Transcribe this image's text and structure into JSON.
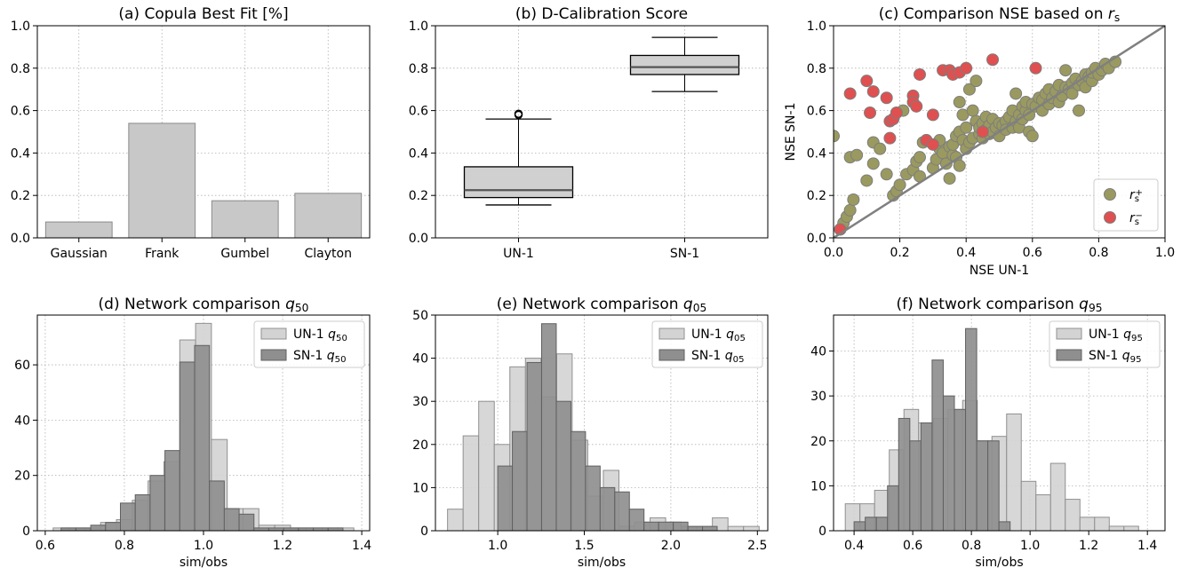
{
  "chart_data": [
    {
      "id": "a",
      "type": "bar",
      "title": "(a) Copula Best Fit [%]",
      "categories": [
        "Gaussian",
        "Frank",
        "Gumbel",
        "Clayton"
      ],
      "values": [
        0.075,
        0.54,
        0.175,
        0.21
      ],
      "ylim": [
        0,
        1.0
      ],
      "yticks": [
        "0.0",
        "0.2",
        "0.4",
        "0.6",
        "0.8",
        "1.0"
      ],
      "bar_color": "#c8c8c8",
      "grid": true
    },
    {
      "id": "b",
      "type": "box",
      "title": "(b) D-Calibration Score",
      "categories": [
        "UN-1",
        "SN-1"
      ],
      "boxes": [
        {
          "whislo": 0.155,
          "q1": 0.19,
          "median": 0.225,
          "q3": 0.335,
          "whishi": 0.56,
          "fliers": [
            0.58,
            0.585
          ]
        },
        {
          "whislo": 0.69,
          "q1": 0.77,
          "median": 0.805,
          "q3": 0.86,
          "whishi": 0.945,
          "fliers": []
        }
      ],
      "ylim": [
        0,
        1.0
      ],
      "yticks": [
        "0.0",
        "0.2",
        "0.4",
        "0.6",
        "0.8",
        "1.0"
      ],
      "grid": true
    },
    {
      "id": "c",
      "type": "scatter",
      "title_main": "(c) Comparison NSE based on ",
      "title_var": "r",
      "title_sub": "s",
      "xlabel": "NSE UN-1",
      "ylabel": "NSE SN-1",
      "xlim": [
        0,
        1.0
      ],
      "ylim": [
        0,
        1.0
      ],
      "xticks": [
        "0.0",
        "0.2",
        "0.4",
        "0.6",
        "0.8",
        "1.0"
      ],
      "yticks": [
        "0.0",
        "0.2",
        "0.4",
        "0.6",
        "0.8",
        "1.0"
      ],
      "grid": true,
      "legend_position": "lower-right",
      "series": [
        {
          "legend_var": "r",
          "legend_sub": "s",
          "legend_sup": "+",
          "color": "#9a9a60",
          "points": [
            [
              0.0,
              0.48
            ],
            [
              0.02,
              0.04
            ],
            [
              0.03,
              0.07
            ],
            [
              0.04,
              0.1
            ],
            [
              0.05,
              0.13
            ],
            [
              0.06,
              0.18
            ],
            [
              0.05,
              0.38
            ],
            [
              0.07,
              0.39
            ],
            [
              0.1,
              0.27
            ],
            [
              0.12,
              0.35
            ],
            [
              0.12,
              0.45
            ],
            [
              0.14,
              0.42
            ],
            [
              0.16,
              0.3
            ],
            [
              0.18,
              0.2
            ],
            [
              0.19,
              0.22
            ],
            [
              0.2,
              0.25
            ],
            [
              0.21,
              0.6
            ],
            [
              0.22,
              0.3
            ],
            [
              0.24,
              0.32
            ],
            [
              0.25,
              0.36
            ],
            [
              0.26,
              0.29
            ],
            [
              0.26,
              0.38
            ],
            [
              0.27,
              0.45
            ],
            [
              0.28,
              0.46
            ],
            [
              0.3,
              0.33
            ],
            [
              0.31,
              0.37
            ],
            [
              0.32,
              0.42
            ],
            [
              0.32,
              0.46
            ],
            [
              0.33,
              0.4
            ],
            [
              0.34,
              0.35
            ],
            [
              0.35,
              0.43
            ],
            [
              0.35,
              0.28
            ],
            [
              0.36,
              0.39
            ],
            [
              0.36,
              0.44
            ],
            [
              0.37,
              0.38
            ],
            [
              0.37,
              0.48
            ],
            [
              0.38,
              0.5
            ],
            [
              0.38,
              0.64
            ],
            [
              0.38,
              0.34
            ],
            [
              0.39,
              0.46
            ],
            [
              0.39,
              0.58
            ],
            [
              0.4,
              0.42
            ],
            [
              0.4,
              0.52
            ],
            [
              0.41,
              0.45
            ],
            [
              0.41,
              0.7
            ],
            [
              0.42,
              0.6
            ],
            [
              0.42,
              0.47
            ],
            [
              0.43,
              0.55
            ],
            [
              0.43,
              0.74
            ],
            [
              0.44,
              0.49
            ],
            [
              0.44,
              0.52
            ],
            [
              0.45,
              0.47
            ],
            [
              0.45,
              0.54
            ],
            [
              0.46,
              0.51
            ],
            [
              0.46,
              0.57
            ],
            [
              0.47,
              0.49
            ],
            [
              0.47,
              0.53
            ],
            [
              0.48,
              0.56
            ],
            [
              0.48,
              0.5
            ],
            [
              0.49,
              0.52
            ],
            [
              0.5,
              0.54
            ],
            [
              0.5,
              0.48
            ],
            [
              0.51,
              0.53
            ],
            [
              0.52,
              0.55
            ],
            [
              0.52,
              0.51
            ],
            [
              0.53,
              0.57
            ],
            [
              0.54,
              0.52
            ],
            [
              0.54,
              0.6
            ],
            [
              0.55,
              0.55
            ],
            [
              0.55,
              0.68
            ],
            [
              0.56,
              0.58
            ],
            [
              0.56,
              0.52
            ],
            [
              0.57,
              0.62
            ],
            [
              0.57,
              0.56
            ],
            [
              0.58,
              0.6
            ],
            [
              0.58,
              0.64
            ],
            [
              0.59,
              0.5
            ],
            [
              0.59,
              0.58
            ],
            [
              0.6,
              0.63
            ],
            [
              0.6,
              0.48
            ],
            [
              0.61,
              0.62
            ],
            [
              0.62,
              0.66
            ],
            [
              0.63,
              0.6
            ],
            [
              0.63,
              0.65
            ],
            [
              0.64,
              0.68
            ],
            [
              0.65,
              0.63
            ],
            [
              0.65,
              0.7
            ],
            [
              0.66,
              0.66
            ],
            [
              0.67,
              0.69
            ],
            [
              0.68,
              0.72
            ],
            [
              0.68,
              0.64
            ],
            [
              0.69,
              0.67
            ],
            [
              0.7,
              0.71
            ],
            [
              0.7,
              0.79
            ],
            [
              0.71,
              0.7
            ],
            [
              0.72,
              0.73
            ],
            [
              0.72,
              0.68
            ],
            [
              0.73,
              0.75
            ],
            [
              0.74,
              0.72
            ],
            [
              0.74,
              0.6
            ],
            [
              0.75,
              0.74
            ],
            [
              0.76,
              0.77
            ],
            [
              0.76,
              0.71
            ],
            [
              0.77,
              0.76
            ],
            [
              0.78,
              0.74
            ],
            [
              0.78,
              0.78
            ],
            [
              0.79,
              0.8
            ],
            [
              0.8,
              0.77
            ],
            [
              0.81,
              0.79
            ],
            [
              0.82,
              0.82
            ],
            [
              0.83,
              0.8
            ],
            [
              0.85,
              0.83
            ]
          ]
        },
        {
          "legend_var": "r",
          "legend_sub": "s",
          "legend_sup": "−",
          "color": "#e05050",
          "points": [
            [
              0.02,
              0.04
            ],
            [
              0.05,
              0.68
            ],
            [
              0.1,
              0.74
            ],
            [
              0.11,
              0.59
            ],
            [
              0.12,
              0.69
            ],
            [
              0.16,
              0.66
            ],
            [
              0.17,
              0.47
            ],
            [
              0.17,
              0.55
            ],
            [
              0.18,
              0.56
            ],
            [
              0.19,
              0.59
            ],
            [
              0.24,
              0.67
            ],
            [
              0.24,
              0.64
            ],
            [
              0.25,
              0.62
            ],
            [
              0.26,
              0.77
            ],
            [
              0.28,
              0.46
            ],
            [
              0.3,
              0.58
            ],
            [
              0.3,
              0.44
            ],
            [
              0.33,
              0.79
            ],
            [
              0.35,
              0.79
            ],
            [
              0.36,
              0.77
            ],
            [
              0.38,
              0.78
            ],
            [
              0.4,
              0.8
            ],
            [
              0.45,
              0.5
            ],
            [
              0.48,
              0.84
            ],
            [
              0.61,
              0.8
            ]
          ]
        }
      ]
    },
    {
      "id": "d",
      "type": "histogram",
      "title_main": "(d) Network comparison ",
      "title_var": "q",
      "title_sub": "50",
      "xlabel": "sim/obs",
      "xlim": [
        0.58,
        1.42
      ],
      "ylim": [
        0,
        78
      ],
      "xticks": [
        0.6,
        0.8,
        1.0,
        1.2,
        1.4
      ],
      "xtick_labels": [
        "0.6",
        "0.8",
        "1.0",
        "1.2",
        "1.4"
      ],
      "yticks": [
        0,
        20,
        40,
        60
      ],
      "ytick_labels": [
        "0",
        "20",
        "40",
        "60"
      ],
      "grid": true,
      "legend_position": "top-right",
      "series": [
        {
          "legend_prefix": "UN-1 ",
          "legend_var": "q",
          "legend_sub": "50",
          "color": "#d3d3d3",
          "edge": "#909090",
          "edges": [
            0.62,
            0.66,
            0.7,
            0.74,
            0.78,
            0.82,
            0.86,
            0.9,
            0.94,
            0.98,
            1.02,
            1.06,
            1.1,
            1.14,
            1.18,
            1.22,
            1.26,
            1.3,
            1.34,
            1.38
          ],
          "counts": [
            1,
            1,
            1,
            3,
            4,
            11,
            18,
            25,
            69,
            75,
            33,
            8,
            8,
            2,
            2,
            1,
            1,
            1,
            1
          ]
        },
        {
          "legend_prefix": "SN-1 ",
          "legend_var": "q",
          "legend_sub": "50",
          "color": "#8f8f8f",
          "edge": "#606060",
          "edges": [
            0.64,
            0.6775,
            0.715,
            0.7525,
            0.79,
            0.8275,
            0.865,
            0.9025,
            0.94,
            0.9775,
            1.015,
            1.0525,
            1.09,
            1.1275,
            1.165,
            1.2025,
            1.24,
            1.2775,
            1.315,
            1.3525
          ],
          "counts": [
            1,
            1,
            2,
            3,
            10,
            13,
            20,
            29,
            61,
            67,
            18,
            8,
            6,
            1,
            1,
            1,
            1,
            1,
            1
          ]
        }
      ]
    },
    {
      "id": "e",
      "type": "histogram",
      "title_main": "(e) Network comparison ",
      "title_var": "q",
      "title_sub": "05",
      "xlabel": "sim/obs",
      "xlim": [
        0.64,
        2.56
      ],
      "ylim": [
        0,
        50
      ],
      "xticks": [
        1.0,
        1.5,
        2.0,
        2.5
      ],
      "xtick_labels": [
        "1.0",
        "1.5",
        "2.0",
        "2.5"
      ],
      "yticks": [
        0,
        10,
        20,
        30,
        40,
        50
      ],
      "ytick_labels": [
        "0",
        "10",
        "20",
        "30",
        "40",
        "50"
      ],
      "grid": true,
      "legend_position": "top-right",
      "series": [
        {
          "legend_prefix": "UN-1 ",
          "legend_var": "q",
          "legend_sub": "05",
          "color": "#d3d3d3",
          "edge": "#909090",
          "edges": [
            0.71,
            0.8,
            0.89,
            0.98,
            1.07,
            1.16,
            1.25,
            1.34,
            1.43,
            1.52,
            1.61,
            1.7,
            1.79,
            1.88,
            1.97,
            2.06,
            2.15,
            2.24,
            2.33,
            2.42,
            2.51
          ],
          "counts": [
            5,
            22,
            30,
            20,
            38,
            40,
            31,
            41,
            21,
            8,
            14,
            1,
            2,
            3,
            2,
            1,
            1,
            3,
            1,
            1
          ]
        },
        {
          "legend_prefix": "SN-1 ",
          "legend_var": "q",
          "legend_sub": "05",
          "color": "#8f8f8f",
          "edge": "#606060",
          "edges": [
            1.0,
            1.0845,
            1.169,
            1.2535,
            1.338,
            1.4225,
            1.507,
            1.5915,
            1.676,
            1.7605,
            1.845,
            1.9295,
            2.014,
            2.0985,
            2.183,
            2.2675
          ],
          "counts": [
            15,
            23,
            39,
            48,
            30,
            23,
            15,
            10,
            9,
            5,
            2,
            2,
            2,
            1,
            1
          ]
        }
      ]
    },
    {
      "id": "f",
      "type": "histogram",
      "title_main": "(f) Network comparison ",
      "title_var": "q",
      "title_sub": "95",
      "xlabel": "sim/obs",
      "xlim": [
        0.33,
        1.46
      ],
      "ylim": [
        0,
        48
      ],
      "xticks": [
        0.4,
        0.6,
        0.8,
        1.0,
        1.2,
        1.4
      ],
      "xtick_labels": [
        "0.4",
        "0.6",
        "0.8",
        "1.0",
        "1.2",
        "1.4"
      ],
      "yticks": [
        0,
        10,
        20,
        30,
        40
      ],
      "ytick_labels": [
        "0",
        "10",
        "20",
        "30",
        "40"
      ],
      "grid": true,
      "legend_position": "top-right",
      "series": [
        {
          "legend_prefix": "UN-1 ",
          "legend_var": "q",
          "legend_sub": "95",
          "color": "#d3d3d3",
          "edge": "#909090",
          "edges": [
            0.37,
            0.42,
            0.47,
            0.52,
            0.57,
            0.62,
            0.67,
            0.72,
            0.77,
            0.82,
            0.87,
            0.92,
            0.97,
            1.02,
            1.07,
            1.12,
            1.17,
            1.22,
            1.27,
            1.32,
            1.37
          ],
          "counts": [
            6,
            6,
            9,
            18,
            27,
            24,
            25,
            27,
            29,
            20,
            21,
            26,
            11,
            8,
            15,
            7,
            3,
            3,
            1,
            1
          ]
        },
        {
          "legend_prefix": "SN-1 ",
          "legend_var": "q",
          "legend_sub": "95",
          "color": "#8f8f8f",
          "edge": "#606060",
          "edges": [
            0.4,
            0.438,
            0.476,
            0.514,
            0.552,
            0.59,
            0.628,
            0.666,
            0.704,
            0.742,
            0.78,
            0.818,
            0.856,
            0.894,
            0.932
          ],
          "counts": [
            2,
            3,
            3,
            10,
            25,
            20,
            24,
            38,
            30,
            27,
            45,
            20,
            20,
            2
          ]
        }
      ]
    }
  ]
}
